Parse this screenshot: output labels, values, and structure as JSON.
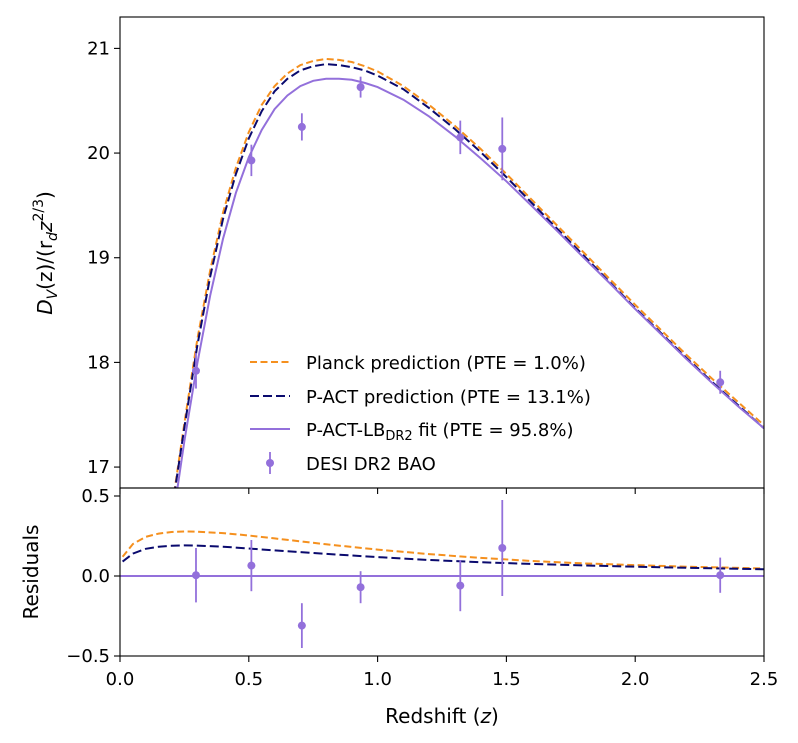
{
  "chart_data": [
    {
      "type": "line",
      "panel": "main",
      "ylabel": "D_V(z)/(r_d z^{2/3})",
      "ylabel_parts": {
        "a": "D",
        "b": "V",
        "c": "(z)/(r",
        "d": "d",
        "e": "z",
        "f": "2/3",
        "g": ")"
      },
      "xlim": [
        0.0,
        2.5
      ],
      "ylim": [
        16.8,
        21.3
      ],
      "yticks": [
        17,
        18,
        19,
        20,
        21
      ],
      "ytick_labels": [
        "17",
        "18",
        "19",
        "20",
        "21"
      ],
      "grid": false,
      "legend_position": "lower-center",
      "legend": {
        "planck": "Planck prediction (PTE = 1.0%)",
        "pact": "P-ACT prediction (PTE = 13.1%)",
        "fit_prefix": "P-ACT-LB",
        "fit_sub": "DR2",
        "fit_suffix": " fit (PTE = 95.8%)",
        "desi": "DESI DR2 BAO"
      },
      "series": [
        {
          "name": "Planck prediction",
          "style": "dashed",
          "color": "#f5901e",
          "x": [
            0.21,
            0.25,
            0.3,
            0.35,
            0.4,
            0.45,
            0.5,
            0.55,
            0.6,
            0.65,
            0.7,
            0.75,
            0.8,
            0.85,
            0.9,
            0.95,
            1.0,
            1.1,
            1.2,
            1.3,
            1.4,
            1.5,
            1.6,
            1.7,
            1.8,
            1.9,
            2.0,
            2.1,
            2.2,
            2.3,
            2.4,
            2.5
          ],
          "y": [
            16.75,
            17.42,
            18.22,
            18.88,
            19.43,
            19.86,
            20.2,
            20.46,
            20.64,
            20.76,
            20.84,
            20.88,
            20.9,
            20.89,
            20.87,
            20.83,
            20.78,
            20.64,
            20.46,
            20.26,
            20.04,
            19.8,
            19.55,
            19.3,
            19.05,
            18.8,
            18.55,
            18.31,
            18.07,
            17.84,
            17.62,
            17.4
          ]
        },
        {
          "name": "P-ACT prediction",
          "style": "dashed",
          "color": "#0a0a6e",
          "x": [
            0.21,
            0.25,
            0.3,
            0.35,
            0.4,
            0.45,
            0.5,
            0.55,
            0.6,
            0.65,
            0.7,
            0.75,
            0.8,
            0.85,
            0.9,
            0.95,
            1.0,
            1.1,
            1.2,
            1.3,
            1.4,
            1.5,
            1.6,
            1.7,
            1.8,
            1.9,
            2.0,
            2.1,
            2.2,
            2.3,
            2.4,
            2.5
          ],
          "y": [
            16.73,
            17.38,
            18.16,
            18.82,
            19.37,
            19.8,
            20.14,
            20.4,
            20.59,
            20.71,
            20.79,
            20.83,
            20.85,
            20.84,
            20.82,
            20.79,
            20.74,
            20.61,
            20.43,
            20.23,
            20.01,
            19.77,
            19.52,
            19.27,
            19.02,
            18.77,
            18.52,
            18.28,
            18.04,
            17.81,
            17.59,
            17.37
          ]
        },
        {
          "name": "P-ACT-LB DR2 fit",
          "style": "solid",
          "color": "#9370db",
          "x": [
            0.22,
            0.25,
            0.3,
            0.35,
            0.4,
            0.45,
            0.5,
            0.55,
            0.6,
            0.65,
            0.7,
            0.75,
            0.8,
            0.85,
            0.9,
            0.95,
            1.0,
            1.1,
            1.2,
            1.3,
            1.4,
            1.5,
            1.6,
            1.7,
            1.8,
            1.9,
            2.0,
            2.1,
            2.2,
            2.3,
            2.4,
            2.5
          ],
          "y": [
            16.75,
            17.25,
            17.99,
            18.64,
            19.18,
            19.62,
            19.96,
            20.22,
            20.42,
            20.55,
            20.64,
            20.69,
            20.71,
            20.71,
            20.7,
            20.67,
            20.63,
            20.51,
            20.35,
            20.16,
            19.95,
            19.73,
            19.49,
            19.25,
            19.0,
            18.76,
            18.51,
            18.27,
            18.03,
            17.8,
            17.58,
            17.37
          ]
        }
      ],
      "points": {
        "name": "DESI DR2 BAO",
        "color": "#9370db",
        "x": [
          0.295,
          0.51,
          0.706,
          0.934,
          1.321,
          1.484,
          2.33
        ],
        "y": [
          17.92,
          19.93,
          20.25,
          20.63,
          20.15,
          20.04,
          17.81
        ],
        "err": [
          0.17,
          0.15,
          0.13,
          0.1,
          0.16,
          0.3,
          0.11
        ]
      }
    },
    {
      "type": "line",
      "panel": "residuals",
      "ylabel": "Residuals",
      "xlabel": "Redshift (z)",
      "xlabel_parts": {
        "a": "Redshift (",
        "b": "z",
        "c": ")"
      },
      "xlim": [
        0.0,
        2.5
      ],
      "ylim": [
        -0.5,
        0.55
      ],
      "xticks": [
        0.0,
        0.5,
        1.0,
        1.5,
        2.0,
        2.5
      ],
      "xtick_labels": [
        "0.0",
        "0.5",
        "1.0",
        "1.5",
        "2.0",
        "2.5"
      ],
      "yticks": [
        -0.5,
        0.0,
        0.5
      ],
      "ytick_labels": [
        "−0.5",
        "0.0",
        "0.5"
      ],
      "series": [
        {
          "name": "Planck residual",
          "style": "dashed",
          "color": "#f5901e",
          "x": [
            0.01,
            0.05,
            0.1,
            0.15,
            0.2,
            0.25,
            0.3,
            0.4,
            0.5,
            0.6,
            0.8,
            1.0,
            1.2,
            1.4,
            1.6,
            1.8,
            2.0,
            2.2,
            2.5
          ],
          "y": [
            0.12,
            0.2,
            0.245,
            0.265,
            0.275,
            0.278,
            0.277,
            0.268,
            0.253,
            0.235,
            0.198,
            0.165,
            0.137,
            0.113,
            0.094,
            0.079,
            0.068,
            0.058,
            0.047
          ]
        },
        {
          "name": "P-ACT residual",
          "style": "dashed",
          "color": "#0a0a6e",
          "x": [
            0.01,
            0.05,
            0.1,
            0.15,
            0.2,
            0.25,
            0.3,
            0.4,
            0.5,
            0.6,
            0.8,
            1.0,
            1.2,
            1.4,
            1.6,
            1.8,
            2.0,
            2.2,
            2.5
          ],
          "y": [
            0.09,
            0.14,
            0.17,
            0.183,
            0.189,
            0.191,
            0.19,
            0.183,
            0.172,
            0.16,
            0.138,
            0.118,
            0.1,
            0.086,
            0.075,
            0.066,
            0.058,
            0.051,
            0.042
          ]
        },
        {
          "name": "Fit residual",
          "style": "solid",
          "color": "#9370db",
          "x": [
            0.0,
            2.5
          ],
          "y": [
            0.0,
            0.0
          ]
        }
      ],
      "points": {
        "name": "DESI residuals",
        "color": "#9370db",
        "x": [
          0.295,
          0.51,
          0.706,
          0.934,
          1.321,
          1.484,
          2.33
        ],
        "y": [
          0.005,
          0.065,
          -0.31,
          -0.07,
          -0.06,
          0.175,
          0.005
        ],
        "err": [
          0.17,
          0.16,
          0.14,
          0.1,
          0.16,
          0.3,
          0.11
        ]
      }
    }
  ]
}
